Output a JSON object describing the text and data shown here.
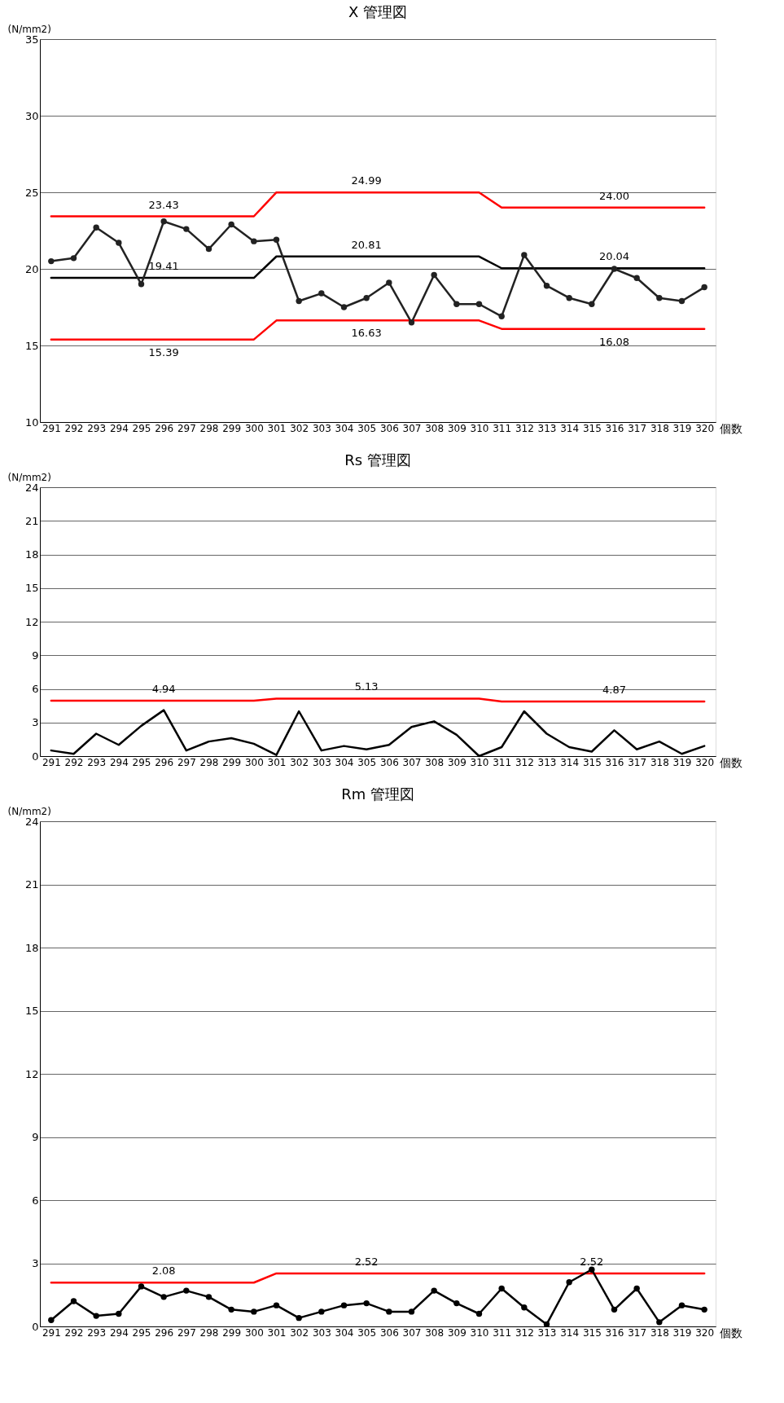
{
  "chart_data": [
    {
      "type": "line",
      "title": "X  管理図",
      "xlabel": "個数",
      "ylabel": "(N/mm2)",
      "categories": [
        "291",
        "292",
        "293",
        "294",
        "295",
        "296",
        "297",
        "298",
        "299",
        "300",
        "301",
        "302",
        "303",
        "304",
        "305",
        "306",
        "307",
        "308",
        "309",
        "310",
        "311",
        "312",
        "313",
        "314",
        "315",
        "316",
        "317",
        "318",
        "319",
        "320"
      ],
      "ylim": [
        10,
        35
      ],
      "yticks": [
        10,
        15,
        20,
        25,
        30,
        35
      ],
      "grid": "y",
      "series": [
        {
          "color": "#ff0000",
          "marker": "none",
          "values": [
            23.43,
            23.43,
            23.43,
            23.43,
            23.43,
            23.43,
            23.43,
            23.43,
            23.43,
            23.43,
            24.99,
            24.99,
            24.99,
            24.99,
            24.99,
            24.99,
            24.99,
            24.99,
            24.99,
            24.99,
            24.0,
            24.0,
            24.0,
            24.0,
            24.0,
            24.0,
            24.0,
            24.0,
            24.0,
            24.0
          ]
        },
        {
          "color": "#000000",
          "marker": "none",
          "values": [
            19.41,
            19.41,
            19.41,
            19.41,
            19.41,
            19.41,
            19.41,
            19.41,
            19.41,
            19.41,
            20.81,
            20.81,
            20.81,
            20.81,
            20.81,
            20.81,
            20.81,
            20.81,
            20.81,
            20.81,
            20.04,
            20.04,
            20.04,
            20.04,
            20.04,
            20.04,
            20.04,
            20.04,
            20.04,
            20.04
          ]
        },
        {
          "color": "#ff0000",
          "marker": "none",
          "values": [
            15.39,
            15.39,
            15.39,
            15.39,
            15.39,
            15.39,
            15.39,
            15.39,
            15.39,
            15.39,
            16.63,
            16.63,
            16.63,
            16.63,
            16.63,
            16.63,
            16.63,
            16.63,
            16.63,
            16.63,
            16.08,
            16.08,
            16.08,
            16.08,
            16.08,
            16.08,
            16.08,
            16.08,
            16.08,
            16.08
          ]
        },
        {
          "color": "#222222",
          "marker": "circle",
          "values": [
            20.5,
            20.7,
            22.7,
            21.7,
            19.0,
            23.1,
            22.6,
            21.3,
            22.9,
            21.8,
            21.9,
            17.9,
            18.4,
            17.5,
            18.1,
            19.1,
            16.5,
            19.6,
            17.7,
            17.7,
            16.9,
            20.9,
            18.9,
            18.1,
            17.7,
            20.0,
            19.4,
            18.1,
            17.9,
            18.8
          ]
        }
      ],
      "annotations": [
        {
          "text": "23.43",
          "x": "296",
          "y": 23.43
        },
        {
          "text": "19.41",
          "x": "296",
          "y": 19.41
        },
        {
          "text": "15.39",
          "x": "296",
          "y": 15.39
        },
        {
          "text": "24.99",
          "x": "305",
          "y": 24.99
        },
        {
          "text": "20.81",
          "x": "305",
          "y": 20.81
        },
        {
          "text": "16.63",
          "x": "305",
          "y": 16.63
        },
        {
          "text": "24.00",
          "x": "316",
          "y": 24.0
        },
        {
          "text": "20.04",
          "x": "316",
          "y": 20.04
        },
        {
          "text": "16.08",
          "x": "316",
          "y": 16.08
        }
      ]
    },
    {
      "type": "line",
      "title": "Rs  管理図",
      "xlabel": "個数",
      "ylabel": "(N/mm2)",
      "categories": [
        "291",
        "292",
        "293",
        "294",
        "295",
        "296",
        "297",
        "298",
        "299",
        "300",
        "301",
        "302",
        "303",
        "304",
        "305",
        "306",
        "307",
        "308",
        "309",
        "310",
        "311",
        "312",
        "313",
        "314",
        "315",
        "316",
        "317",
        "318",
        "319",
        "320"
      ],
      "ylim": [
        0,
        24
      ],
      "yticks": [
        0,
        3,
        6,
        9,
        12,
        15,
        18,
        21,
        24
      ],
      "grid": "y",
      "series": [
        {
          "color": "#ff0000",
          "marker": "none",
          "values": [
            4.94,
            4.94,
            4.94,
            4.94,
            4.94,
            4.94,
            4.94,
            4.94,
            4.94,
            4.94,
            5.13,
            5.13,
            5.13,
            5.13,
            5.13,
            5.13,
            5.13,
            5.13,
            5.13,
            5.13,
            4.87,
            4.87,
            4.87,
            4.87,
            4.87,
            4.87,
            4.87,
            4.87,
            4.87,
            4.87
          ]
        },
        {
          "color": "#000000",
          "marker": "none",
          "values": [
            0.5,
            0.2,
            2.0,
            1.0,
            2.7,
            4.1,
            0.5,
            1.3,
            1.6,
            1.1,
            0.1,
            4.0,
            0.5,
            0.9,
            0.6,
            1.0,
            2.6,
            3.1,
            1.9,
            0.0,
            0.8,
            4.0,
            2.0,
            0.8,
            0.4,
            2.3,
            0.6,
            1.3,
            0.2,
            0.9
          ]
        }
      ],
      "annotations": [
        {
          "text": "4.94",
          "x": "296",
          "y": 4.94
        },
        {
          "text": "5.13",
          "x": "305",
          "y": 5.13
        },
        {
          "text": "4.87",
          "x": "316",
          "y": 4.87
        }
      ]
    },
    {
      "type": "line",
      "title": "Rm  管理図",
      "xlabel": "個数",
      "ylabel": "(N/mm2)",
      "categories": [
        "291",
        "292",
        "293",
        "294",
        "295",
        "296",
        "297",
        "298",
        "299",
        "300",
        "301",
        "302",
        "303",
        "304",
        "305",
        "306",
        "307",
        "308",
        "309",
        "310",
        "311",
        "312",
        "313",
        "314",
        "315",
        "316",
        "317",
        "318",
        "319",
        "320"
      ],
      "ylim": [
        0,
        24
      ],
      "yticks": [
        0,
        3,
        6,
        9,
        12,
        15,
        18,
        21,
        24
      ],
      "grid": "y",
      "series": [
        {
          "color": "#ff0000",
          "marker": "none",
          "values": [
            2.08,
            2.08,
            2.08,
            2.08,
            2.08,
            2.08,
            2.08,
            2.08,
            2.08,
            2.08,
            2.52,
            2.52,
            2.52,
            2.52,
            2.52,
            2.52,
            2.52,
            2.52,
            2.52,
            2.52,
            2.52,
            2.52,
            2.52,
            2.52,
            2.52,
            2.52,
            2.52,
            2.52,
            2.52,
            2.52
          ]
        },
        {
          "color": "#000000",
          "marker": "circle",
          "values": [
            0.3,
            1.2,
            0.5,
            0.6,
            1.9,
            1.4,
            1.7,
            1.4,
            0.8,
            0.7,
            1.0,
            0.4,
            0.7,
            1.0,
            1.1,
            0.7,
            0.7,
            1.7,
            1.1,
            0.6,
            1.8,
            0.9,
            0.1,
            2.1,
            2.7,
            0.8,
            1.8,
            0.2,
            1.0,
            0.8
          ]
        }
      ],
      "annotations": [
        {
          "text": "2.08",
          "x": "296",
          "y": 2.08
        },
        {
          "text": "2.52",
          "x": "305",
          "y": 2.52
        },
        {
          "text": "2.52",
          "x": "315",
          "y": 2.52
        }
      ]
    }
  ]
}
